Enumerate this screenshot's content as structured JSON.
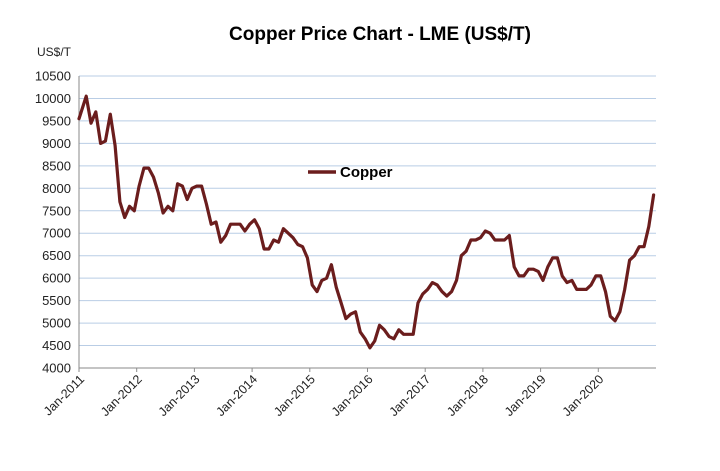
{
  "chart_data": {
    "type": "line",
    "title": "Copper Price Chart - LME (US$/T)",
    "ylabel": "US$/T",
    "xlabel": "",
    "ylim": [
      4000,
      10500
    ],
    "yticks": [
      "4000",
      "4500",
      "5000",
      "5500",
      "6000",
      "6500",
      "7000",
      "7500",
      "8000",
      "8500",
      "9000",
      "9500",
      "10000",
      "10500"
    ],
    "xticks": [
      "Jan-2011",
      "Jan-2012",
      "Jan-2013",
      "Jan-2014",
      "Jan-2015",
      "Jan-2016",
      "Jan-2017",
      "Jan-2018",
      "Jan-2019",
      "Jan-2020"
    ],
    "xlim": [
      "2011-01",
      "2020-12"
    ],
    "grid": true,
    "legend_position": "center",
    "series": [
      {
        "name": "Copper",
        "color": "#6b1d1d",
        "x": [
          "2011-01",
          "2011-02",
          "2011-03",
          "2011-04",
          "2011-05",
          "2011-06",
          "2011-07",
          "2011-08",
          "2011-09",
          "2011-10",
          "2011-11",
          "2011-12",
          "2012-01",
          "2012-02",
          "2012-03",
          "2012-04",
          "2012-05",
          "2012-06",
          "2012-07",
          "2012-08",
          "2012-09",
          "2012-10",
          "2012-11",
          "2012-12",
          "2013-01",
          "2013-02",
          "2013-03",
          "2013-04",
          "2013-05",
          "2013-06",
          "2013-07",
          "2013-08",
          "2013-09",
          "2013-10",
          "2013-11",
          "2013-12",
          "2014-01",
          "2014-02",
          "2014-03",
          "2014-04",
          "2014-05",
          "2014-06",
          "2014-07",
          "2014-08",
          "2014-09",
          "2014-10",
          "2014-11",
          "2014-12",
          "2015-01",
          "2015-02",
          "2015-03",
          "2015-04",
          "2015-05",
          "2015-06",
          "2015-07",
          "2015-08",
          "2015-09",
          "2015-10",
          "2015-11",
          "2015-12",
          "2016-01",
          "2016-02",
          "2016-03",
          "2016-04",
          "2016-05",
          "2016-06",
          "2016-07",
          "2016-08",
          "2016-09",
          "2016-10",
          "2016-11",
          "2016-12",
          "2017-01",
          "2017-02",
          "2017-03",
          "2017-04",
          "2017-05",
          "2017-06",
          "2017-07",
          "2017-08",
          "2017-09",
          "2017-10",
          "2017-11",
          "2017-12",
          "2018-01",
          "2018-02",
          "2018-03",
          "2018-04",
          "2018-05",
          "2018-06",
          "2018-07",
          "2018-08",
          "2018-09",
          "2018-10",
          "2018-11",
          "2018-12",
          "2019-01",
          "2019-02",
          "2019-03",
          "2019-04",
          "2019-05",
          "2019-06",
          "2019-07",
          "2019-08",
          "2019-09",
          "2019-10",
          "2019-11",
          "2019-12",
          "2020-01",
          "2020-02",
          "2020-03",
          "2020-04",
          "2020-05",
          "2020-06",
          "2020-07",
          "2020-08",
          "2020-09",
          "2020-10",
          "2020-11",
          "2020-12"
        ],
        "values": [
          9550,
          10050,
          9450,
          9700,
          9000,
          9050,
          9650,
          8950,
          7700,
          7350,
          7600,
          7500,
          8050,
          8450,
          8450,
          8250,
          7900,
          7450,
          7600,
          7500,
          8100,
          8050,
          7750,
          8000,
          8050,
          8050,
          7650,
          7200,
          7250,
          6800,
          6950,
          7200,
          7200,
          7200,
          7050,
          7200,
          7300,
          7100,
          6650,
          6650,
          6850,
          6800,
          7100,
          7000,
          6900,
          6750,
          6700,
          6450,
          5850,
          5700,
          5950,
          6000,
          6300,
          5800,
          5450,
          5100,
          5200,
          5250,
          4800,
          4650,
          4450,
          4600,
          4950,
          4850,
          4700,
          4650,
          4850,
          4750,
          4750,
          4750,
          5450,
          5650,
          5750,
          5900,
          5850,
          5700,
          5600,
          5700,
          5950,
          6500,
          6600,
          6850,
          6850,
          6900,
          7050,
          7000,
          6850,
          6850,
          6850,
          6950,
          6250,
          6050,
          6050,
          6200,
          6200,
          6150,
          5950,
          6250,
          6450,
          6450,
          6050,
          5900,
          5950,
          5750,
          5750,
          5750,
          5850,
          6050,
          6050,
          5700,
          5150,
          5050,
          5250,
          5750,
          6400,
          6500,
          6700,
          6700,
          7150,
          7850
        ]
      }
    ]
  }
}
